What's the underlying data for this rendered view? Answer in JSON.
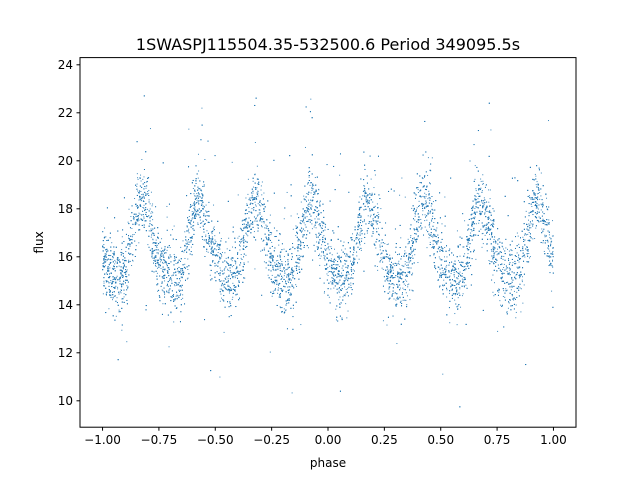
{
  "chart_data": {
    "type": "scatter",
    "title": "1SWASPJ115504.35-532500.6 Period 349095.5s",
    "xlabel": "phase",
    "ylabel": "flux",
    "xlim": [
      -1.1,
      1.1
    ],
    "ylim": [
      8.9,
      24.3
    ],
    "xticks": [
      -1.0,
      -0.75,
      -0.5,
      -0.25,
      0.0,
      0.25,
      0.5,
      0.75,
      1.0
    ],
    "xtick_labels": [
      "−1.00",
      "−0.75",
      "−0.50",
      "−0.25",
      "0.00",
      "0.25",
      "0.50",
      "0.75",
      "1.00"
    ],
    "yticks": [
      10,
      12,
      14,
      16,
      18,
      20,
      22,
      24
    ],
    "ytick_labels": [
      "10",
      "12",
      "14",
      "16",
      "18",
      "20",
      "22",
      "24"
    ],
    "grid": false,
    "legend": false,
    "point_color": "#1f77b4",
    "phase_range": [
      -1.0,
      1.0
    ],
    "approx_point_count": 9000,
    "typical_flux_range": [
      13.5,
      20.0
    ],
    "scatter_extremes": [
      9.7,
      23.5
    ],
    "brightness_peaks_phase": [
      -0.82,
      -0.57,
      -0.32,
      -0.06,
      0.19,
      0.44,
      0.69,
      0.94
    ],
    "brightness_peak_flux": 18.0,
    "brightness_trough_flux": 14.8
  }
}
